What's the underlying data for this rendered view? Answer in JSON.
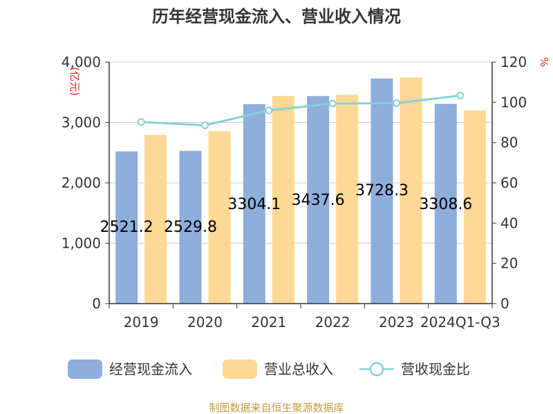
{
  "chart_data": {
    "type": "bar",
    "title": "历年经营现金流入、营业收入情况",
    "categories": [
      "2019",
      "2020",
      "2021",
      "2022",
      "2023",
      "2024Q1-Q3"
    ],
    "series": [
      {
        "name": "经营现金流入",
        "type": "bar",
        "axis": "left",
        "color": "#8eaedb",
        "values": [
          2521.2,
          2529.8,
          3304.1,
          3437.6,
          3728.3,
          3308.6
        ],
        "data_labels": [
          "2521.2",
          "2529.8",
          "3304.1",
          "3437.6",
          "3728.3",
          "3308.6"
        ]
      },
      {
        "name": "营业总收入",
        "type": "bar",
        "axis": "left",
        "color": "#fed896",
        "values": [
          2795,
          2855,
          3440,
          3460,
          3745,
          3200
        ]
      },
      {
        "name": "营收现金比",
        "type": "line",
        "axis": "right",
        "color": "#88d0d6",
        "values": [
          90.2,
          88.6,
          96.0,
          99.4,
          99.6,
          103.4
        ]
      }
    ],
    "y_left": {
      "label": "(亿元)",
      "ylim": [
        0,
        4000
      ],
      "ticks": [
        "0",
        "1,000",
        "2,000",
        "3,000",
        "4,000"
      ]
    },
    "y_right": {
      "label": "%",
      "ylim": [
        0,
        120
      ],
      "ticks": [
        "0",
        "20",
        "40",
        "60",
        "80",
        "100",
        "120"
      ]
    },
    "grid": true,
    "legend_position": "bottom"
  },
  "source": "制图数据来自恒生聚源数据库"
}
